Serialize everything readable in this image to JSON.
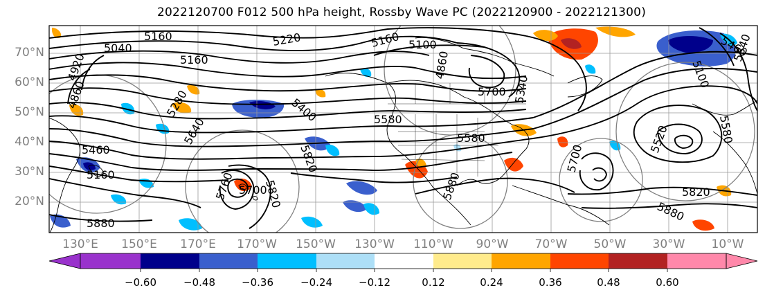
{
  "title": "2022120700 F012 500 hPa height, Rossby Wave PC (2022120900 - 2022121300)",
  "lat_labels": [
    "70°N",
    "60°N",
    "50°N",
    "40°N",
    "30°N",
    "20°N"
  ],
  "lon_labels": [
    "130°E",
    "150°E",
    "170°E",
    "170°W",
    "150°W",
    "130°W",
    "110°W",
    "90°W",
    "70°W",
    "50°W",
    "30°W",
    "10°W"
  ],
  "contour_labels": [
    "5160",
    "5220",
    "5160",
    "5160",
    "5100",
    "5040",
    "4920",
    "4860",
    "5340",
    "5460",
    "5160",
    "5580",
    "5580",
    "5700",
    "5760",
    "5820",
    "5820",
    "5880",
    "5880",
    "5820",
    "5520",
    "5580",
    "5700",
    "5880",
    "5400",
    "5460",
    "5640",
    "5700",
    "4860",
    "5340",
    "5280",
    "5100"
  ],
  "colorbar": {
    "ticks": [
      "−0.60",
      "−0.48",
      "−0.36",
      "−0.24",
      "−0.12",
      "0.12",
      "0.24",
      "0.36",
      "0.48",
      "0.60"
    ],
    "colors": [
      "#9932CC",
      "#00008B",
      "#3A5FCD",
      "#00BFFF",
      "#ADDFF7",
      "#FFFFFF",
      "#FFEB8C",
      "#FFA500",
      "#FF4500",
      "#B22222",
      "#FF88AA"
    ]
  }
}
